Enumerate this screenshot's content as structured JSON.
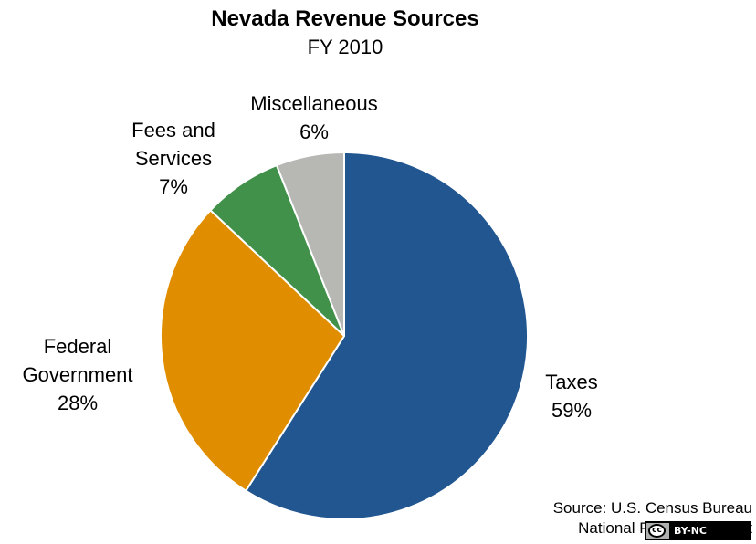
{
  "chart_data": {
    "type": "pie",
    "title": "Nevada Revenue Sources",
    "subtitle": "FY 2010",
    "slices": [
      {
        "name": "Taxes",
        "value": 59,
        "label": "59%",
        "color": "#225690"
      },
      {
        "name": "Federal Government",
        "value": 28,
        "label": "28%",
        "color": "#e08e00"
      },
      {
        "name": "Fees and Services",
        "value": 7,
        "label": "7%",
        "color": "#41914b"
      },
      {
        "name": "Miscellaneous",
        "value": 6,
        "label": "6%",
        "color": "#b7b7b3"
      }
    ],
    "label_lines": {
      "taxes": [
        "Taxes"
      ],
      "federal": [
        "Federal",
        "Government"
      ],
      "fees": [
        "Fees and",
        "Services"
      ],
      "misc": [
        "Miscellaneous"
      ]
    },
    "source": [
      "Source: U.S. Census Bureau",
      "National Priorities Project"
    ],
    "license": {
      "cc": "cc",
      "text": "BY-NC"
    }
  }
}
